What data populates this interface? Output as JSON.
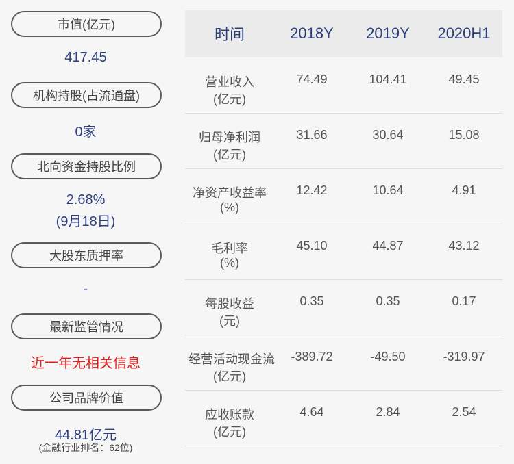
{
  "left": [
    {
      "label": "市值(亿元)",
      "lines": [
        "417.45"
      ]
    },
    {
      "label": "机构持股(占流通盘)",
      "lines": [
        "0家"
      ]
    },
    {
      "label": "北向资金持股比例",
      "lines": [
        "2.68%",
        "(9月18日)"
      ]
    },
    {
      "label": "大股东质押率",
      "lines": [
        "-"
      ]
    },
    {
      "label": "最新监管情况",
      "lines": [
        "近一年无相关信息"
      ]
    },
    {
      "label": "公司品牌价值",
      "lines": [
        "44.81亿元",
        "(金融行业排名：62位)"
      ]
    }
  ],
  "table": {
    "header": [
      "时间",
      "2018Y",
      "2019Y",
      "2020H1"
    ],
    "rows": [
      {
        "label": [
          "营业收入",
          "(亿元)"
        ],
        "values": [
          "74.49",
          "104.41",
          "49.45"
        ]
      },
      {
        "label": [
          "归母净利润",
          "(亿元)"
        ],
        "values": [
          "31.66",
          "30.64",
          "15.08"
        ]
      },
      {
        "label": [
          "净资产收益率",
          "(%)"
        ],
        "values": [
          "12.42",
          "10.64",
          "4.91"
        ]
      },
      {
        "label": [
          "毛利率",
          "(%)"
        ],
        "values": [
          "45.10",
          "44.87",
          "43.12"
        ]
      },
      {
        "label": [
          "每股收益",
          "(元)"
        ],
        "values": [
          "0.35",
          "0.35",
          "0.17"
        ]
      },
      {
        "label": [
          "经营活动现金流",
          "(亿元)"
        ],
        "values": [
          "-389.72",
          "-49.50",
          "-319.97"
        ]
      },
      {
        "label": [
          "应收账款",
          "(亿元)"
        ],
        "values": [
          "4.64",
          "2.84",
          "2.54"
        ]
      }
    ]
  }
}
